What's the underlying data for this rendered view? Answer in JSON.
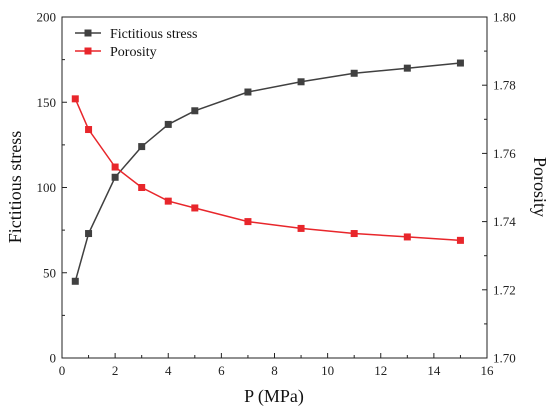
{
  "chart_data": {
    "type": "line",
    "xlabel": "P (MPa)",
    "ylabel": "Fictitious stress",
    "y2label": "Porosity",
    "xlim": [
      0,
      16
    ],
    "ylim": [
      0,
      200
    ],
    "y2lim": [
      1.7,
      1.8
    ],
    "xticks": [
      0,
      2,
      4,
      6,
      8,
      10,
      12,
      14,
      16
    ],
    "yticks": [
      0,
      50,
      100,
      150,
      200
    ],
    "y2ticks": [
      "1.70",
      "1.72",
      "1.74",
      "1.76",
      "1.78",
      "1.80"
    ],
    "grid": false,
    "legend_position": "top-left",
    "series": [
      {
        "name": "Fictitious stress",
        "axis": "left",
        "color": "#404040",
        "marker": "square",
        "x": [
          0.5,
          1,
          2,
          3,
          4,
          5,
          7,
          9,
          11,
          13,
          15
        ],
        "y": [
          45,
          73,
          106,
          124,
          137,
          145,
          156,
          162,
          167,
          170,
          173
        ]
      },
      {
        "name": "Porosity",
        "axis": "right",
        "color": "#e8262b",
        "marker": "square",
        "x": [
          0.5,
          1,
          2,
          3,
          4,
          5,
          7,
          9,
          11,
          13,
          15
        ],
        "y": [
          1.776,
          1.767,
          1.756,
          1.75,
          1.746,
          1.744,
          1.74,
          1.738,
          1.7365,
          1.7355,
          1.7345
        ]
      }
    ]
  }
}
